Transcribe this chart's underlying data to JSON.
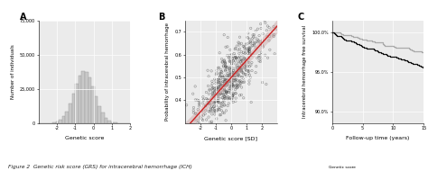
{
  "panel_A": {
    "label": "A",
    "hist_mean": -0.5,
    "hist_std": 0.55,
    "hist_n": 300000,
    "hist_bins": 28,
    "hist_color": "#c8c8c8",
    "hist_edgecolor": "#999999",
    "xlim": [
      -3,
      2
    ],
    "ylim": [
      0,
      75000
    ],
    "yticks": [
      0,
      25000,
      50000,
      75000
    ],
    "ytick_labels": [
      "0",
      "25,000",
      "50,000",
      "75,000"
    ],
    "xticks": [
      -2,
      -1,
      0,
      1,
      2
    ],
    "xlabel": "Genetic score",
    "ylabel": "Number of individuals"
  },
  "panel_B": {
    "label": "B",
    "n_points": 600,
    "x_mean": 0.0,
    "x_std": 1.2,
    "slope": 0.075,
    "intercept": 0.5,
    "noise_std": 0.065,
    "point_color": "#555555",
    "point_size": 3,
    "line_color": "#cc2222",
    "ci_color": "#ccaaaa",
    "xlim": [
      -3,
      3
    ],
    "ylim": [
      0.3,
      0.75
    ],
    "yticks": [
      0.4,
      0.5,
      0.6,
      0.7
    ],
    "ytick_labels": [
      "0.4",
      "0.5",
      "0.6",
      "0.7"
    ],
    "xticks": [
      -2,
      -1,
      0,
      1,
      2
    ],
    "xlabel": "Genetic score [SD]",
    "ylabel": "Probability of intracerebral hemorrhage"
  },
  "panel_C": {
    "label": "C",
    "line1_color": "#aaaaaa",
    "line2_color": "#111111",
    "xlim": [
      0,
      15
    ],
    "ylim": [
      88.5,
      101.5
    ],
    "yticks": [
      90.0,
      95.0,
      100.0
    ],
    "ytick_labels": [
      "90.0%",
      "95.0%",
      "100.0%"
    ],
    "xticks": [
      0,
      5,
      10,
      15
    ],
    "xlabel": "Follow-up time (years)",
    "ylabel": "Intracerebral hemorrhage free survival"
  },
  "figure_caption": "Figure 2  Genetic risk score (GRS) for intracerebral hemorrhage (ICH)"
}
